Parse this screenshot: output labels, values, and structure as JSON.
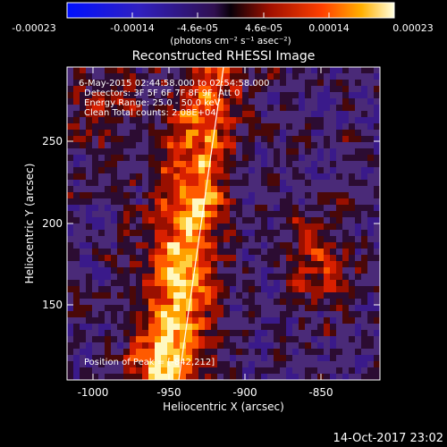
{
  "colorbar": {
    "tick_labels": [
      "-0.00023",
      "-0.00014",
      "-4.6e-05",
      "4.6e-05",
      "0.00014",
      "0.00023"
    ],
    "units_label": "(photons cm⁻² s⁻¹ asec⁻²)"
  },
  "image": {
    "title": "Reconstructed RHESSI Image",
    "annotations": [
      "6-May-2015 02:44:58.000 to 02:54:58.000",
      "Detectors: 3F 5F 6F 7F 8F 9F, Att 0",
      "Energy Range: 25.0 - 50.0 keV",
      "Clean     Total counts: 2.08E+04"
    ],
    "peak_label": "Position of Peak = [-842,212]",
    "x_axis": {
      "label": "Heliocentric X (arcsec)",
      "ticks": [
        "-1000",
        "-950",
        "-900",
        "-850"
      ]
    },
    "y_axis": {
      "label": "Heliocentric Y (arcsec)",
      "ticks": [
        "250",
        "200",
        "150"
      ]
    }
  },
  "footer": {
    "timestamp": "14-Oct-2017 23:02"
  },
  "colors": {
    "background": "#000000",
    "text": "#ffffff"
  }
}
